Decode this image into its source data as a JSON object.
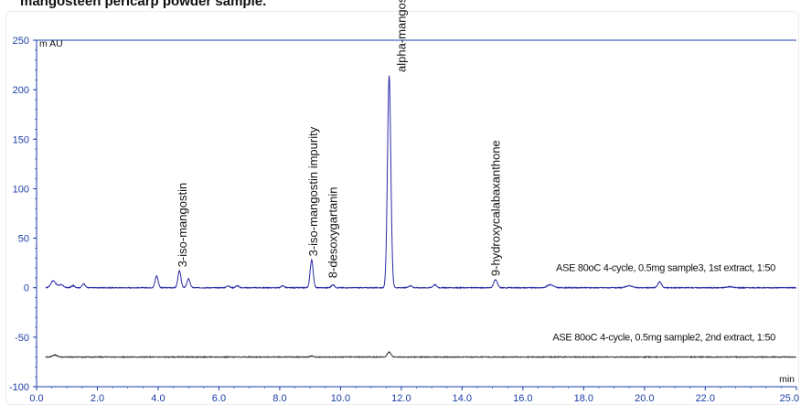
{
  "header": {
    "title": "mangosteen pericarp powder sample."
  },
  "chart_data": {
    "type": "line",
    "title": "mangosteen pericarp powder sample.",
    "ylabel": "m AU",
    "xlabel": "min",
    "xlim": [
      0,
      25
    ],
    "ylim": [
      -100,
      250
    ],
    "xticks": [
      "0.0",
      "2.0",
      "4.0",
      "6.0",
      "8.0",
      "10.0",
      "12.0",
      "14.0",
      "16.0",
      "18.0",
      "20.0",
      "22.0",
      "25.0"
    ],
    "yticks": [
      "250",
      "200",
      "150",
      "100",
      "50",
      "0",
      "-50",
      "-100"
    ],
    "grid": false,
    "series": [
      {
        "name": "ASE 80oC 4-cycle, 0.5mg sample3, 1st extract, 1:50",
        "color": "#2a2aa6",
        "baseline": 0,
        "peaks": [
          {
            "x": 0.55,
            "y": 7,
            "w": 0.08
          },
          {
            "x": 0.8,
            "y": 3,
            "w": 0.08
          },
          {
            "x": 1.2,
            "y": 2,
            "w": 0.06
          },
          {
            "x": 1.55,
            "y": 4,
            "w": 0.05
          },
          {
            "x": 3.95,
            "y": 12,
            "w": 0.05
          },
          {
            "x": 4.7,
            "y": 17,
            "w": 0.05
          },
          {
            "x": 5.0,
            "y": 9,
            "w": 0.05
          },
          {
            "x": 6.3,
            "y": 2,
            "w": 0.05
          },
          {
            "x": 6.6,
            "y": 2,
            "w": 0.05
          },
          {
            "x": 8.1,
            "y": 2,
            "w": 0.05
          },
          {
            "x": 9.05,
            "y": 28,
            "w": 0.05
          },
          {
            "x": 9.75,
            "y": 3,
            "w": 0.05
          },
          {
            "x": 11.6,
            "y": 214,
            "w": 0.055
          },
          {
            "x": 12.3,
            "y": 2,
            "w": 0.06
          },
          {
            "x": 13.1,
            "y": 3,
            "w": 0.06
          },
          {
            "x": 15.1,
            "y": 8,
            "w": 0.06
          },
          {
            "x": 16.9,
            "y": 3,
            "w": 0.1
          },
          {
            "x": 19.5,
            "y": 2,
            "w": 0.1
          },
          {
            "x": 20.5,
            "y": 6,
            "w": 0.06
          },
          {
            "x": 22.8,
            "y": 1,
            "w": 0.1
          }
        ]
      },
      {
        "name": "ASE 80oC 4-cycle, 0.5mg sample2, 2nd extract, 1:50",
        "color": "#333333",
        "baseline": -70,
        "peaks": [
          {
            "x": 0.6,
            "y": 2,
            "w": 0.08
          },
          {
            "x": 9.05,
            "y": 1,
            "w": 0.05
          },
          {
            "x": 11.6,
            "y": 5,
            "w": 0.06
          }
        ]
      }
    ],
    "annotations": [
      {
        "text": "3-iso-mangostin",
        "x": 4.8,
        "y": 17
      },
      {
        "text": "3-iso-mangostin impurity",
        "x": 9.1,
        "y": 28
      },
      {
        "text": "8-desoxygartanin",
        "x": 9.75,
        "y": 6
      },
      {
        "text": "alpha-mangostin",
        "x": 12.0,
        "y": 214
      },
      {
        "text": "9-hydroxycalabaxanthone",
        "x": 15.1,
        "y": 8
      }
    ]
  }
}
